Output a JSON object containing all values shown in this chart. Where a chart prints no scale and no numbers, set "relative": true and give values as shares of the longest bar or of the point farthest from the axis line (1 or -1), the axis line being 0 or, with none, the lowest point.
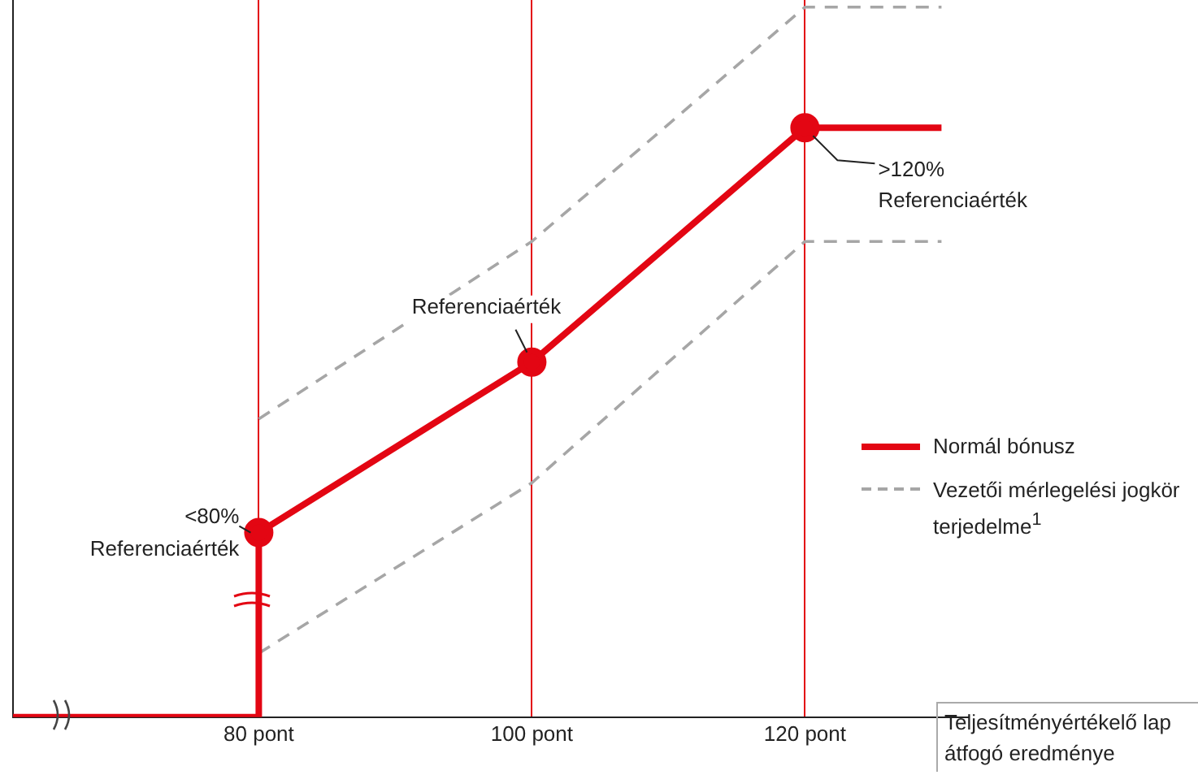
{
  "chart_data": {
    "type": "line",
    "relative": true,
    "xlabel": "Teljesítményértékelő lap átfogó eredménye",
    "xlim": [
      62,
      132
    ],
    "xticks": [
      {
        "value": 80,
        "label": "80 pont"
      },
      {
        "value": 100,
        "label": "100 pont"
      },
      {
        "value": 120,
        "label": "120 pont"
      }
    ],
    "grid": "x",
    "legend": "right",
    "marker": "circle",
    "series": [
      {
        "name": "Normál bónusz",
        "color": "#e30613",
        "line_style": "solid",
        "x": [
          62,
          80,
          80,
          100,
          120,
          130
        ],
        "values": [
          0,
          0,
          0.26,
          0.5,
          0.83,
          0.83
        ]
      },
      {
        "name": "Vezetői mérlegelési jogkör terjedelme$^{1}$",
        "color": "#a6a6a6",
        "line_style": "dashed",
        "marker": "none",
        "x": [
          80,
          100,
          120,
          130
        ],
        "values": [
          0.42,
          0.67,
          1,
          1
        ]
      },
      {
        "color": "#a6a6a6",
        "line_style": "dashed",
        "marker": "none",
        "x": [
          80,
          100,
          120,
          130
        ],
        "values": [
          0.09,
          0.33,
          0.67,
          0.67
        ]
      }
    ],
    "annotations": [
      {
        "text": "<80%\nReferenciaérték",
        "x": 80,
        "y": 0.26
      },
      {
        "text": "Referenciaérték",
        "x": 100,
        "y": 0.5
      },
      {
        "text": ">120%\nReferenciaérték",
        "x": 120,
        "y": 0.83
      }
    ]
  }
}
